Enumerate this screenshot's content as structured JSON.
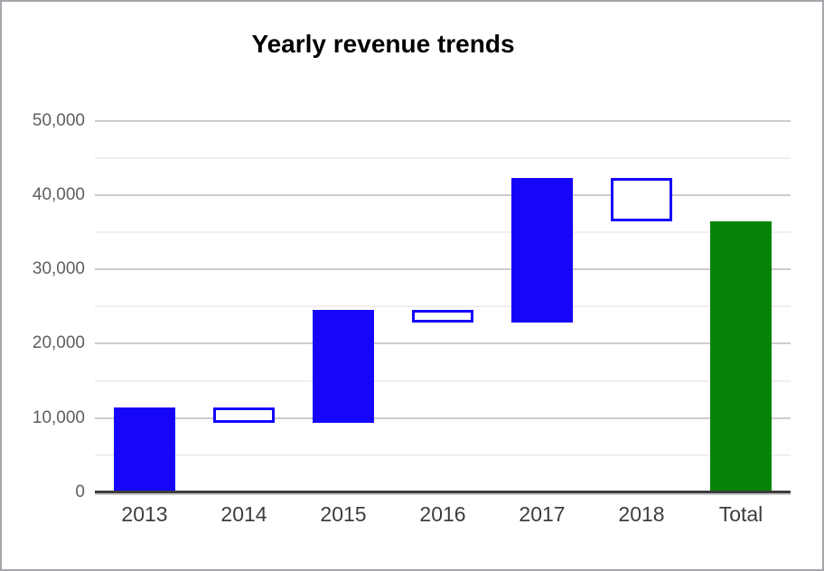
{
  "chart_data": {
    "type": "waterfall",
    "title": "Yearly revenue trends",
    "xlabel": "",
    "ylabel": "",
    "categories": [
      "2013",
      "2014",
      "2015",
      "2016",
      "2017",
      "2018",
      "Total"
    ],
    "bars": [
      {
        "label": "2013",
        "start": 0,
        "end": 11400,
        "kind": "increase"
      },
      {
        "label": "2014",
        "start": 11400,
        "end": 9300,
        "kind": "decrease"
      },
      {
        "label": "2015",
        "start": 9300,
        "end": 24500,
        "kind": "increase"
      },
      {
        "label": "2016",
        "start": 24500,
        "end": 22900,
        "kind": "decrease"
      },
      {
        "label": "2017",
        "start": 22900,
        "end": 42300,
        "kind": "increase"
      },
      {
        "label": "2018",
        "start": 42300,
        "end": 36500,
        "kind": "decrease"
      },
      {
        "label": "Total",
        "start": 0,
        "end": 36500,
        "kind": "total"
      }
    ],
    "ylim": [
      0,
      50000
    ],
    "y_major_step": 10000,
    "y_minor_step": 5000,
    "y_tick_labels": [
      "0",
      "10,000",
      "20,000",
      "30,000",
      "40,000",
      "50,000"
    ],
    "grid": true,
    "legend": "none",
    "colors": {
      "increase_fill": "#1505f9",
      "decrease_fill": "#ffffff",
      "decrease_border": "#1505f9",
      "total_fill": "#078407",
      "major_gridline": "#cccccc",
      "minor_gridline": "#efefef",
      "baseline": "#3d3d3d",
      "y_axis_text": "#5e5e5e",
      "x_axis_text": "#3d3d3d",
      "title_text": "#000000"
    }
  }
}
